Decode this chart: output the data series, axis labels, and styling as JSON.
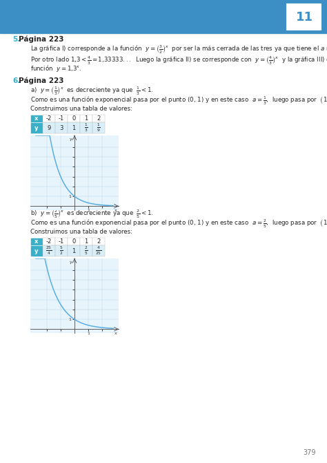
{
  "page_number": "11",
  "page_num_bottom": "379",
  "header_color": "#3b8fc4",
  "blue_color": "#3aafc8",
  "section5_num": "5.",
  "section5_head": "Página 223",
  "section6_num": "6.",
  "section6_head": "Página 223",
  "table1_header_bg": "#3aafc8",
  "table1_row_bg": "#daeef8",
  "table2_header_bg": "#3aafc8",
  "table2_row_bg": "#daeef8",
  "graph_bg": "#e8f4fb",
  "graph_line_color": "#5aade2",
  "graph_grid_color": "#b8d8ee"
}
